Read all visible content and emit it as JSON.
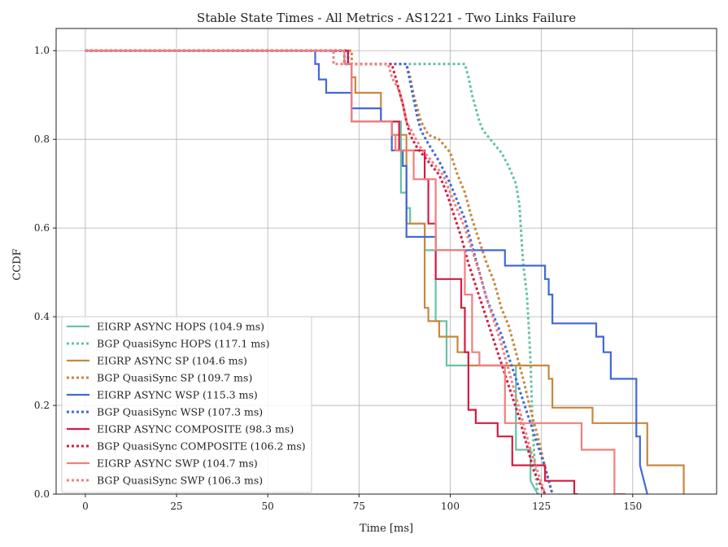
{
  "chart_data": {
    "type": "line",
    "title": "Stable State Times - All Metrics - AS1221 - Two Links Failure",
    "xlabel": "Time [ms]",
    "ylabel": "CCDF",
    "xlim": [
      -8,
      173
    ],
    "ylim": [
      0,
      1.05
    ],
    "xticks": [
      0,
      25,
      50,
      75,
      100,
      125,
      150
    ],
    "yticks": [
      0.0,
      0.2,
      0.4,
      0.6,
      0.8,
      1.0
    ],
    "xtick_labels": [
      "0",
      "25",
      "50",
      "75",
      "100",
      "125",
      "150"
    ],
    "ytick_labels": [
      "0.0",
      "0.2",
      "0.4",
      "0.6",
      "0.8",
      "1.0"
    ],
    "grid": true,
    "legend_position": "lower-left",
    "series": [
      {
        "name": "EIGRP ASYNC HOPS (104.9 ms)",
        "color": "#66c2a5",
        "style": "solid",
        "x": [
          0,
          72,
          72,
          73,
          73,
          86.5,
          86.5,
          88,
          88,
          89,
          89,
          93,
          93,
          96,
          96,
          99,
          99,
          105,
          105,
          118,
          118,
          122,
          122,
          124
        ],
        "y": [
          1.0,
          1.0,
          0.97,
          0.97,
          0.84,
          0.84,
          0.68,
          0.68,
          0.645,
          0.645,
          0.61,
          0.61,
          0.55,
          0.55,
          0.39,
          0.39,
          0.29,
          0.29,
          0.29,
          0.29,
          0.1,
          0.1,
          0.03,
          0.0
        ]
      },
      {
        "name": "BGP QuasiSync HOPS (117.1 ms)",
        "color": "#66c2a5",
        "style": "dotted",
        "x": [
          0,
          72,
          72,
          104,
          105,
          106,
          107,
          108,
          109,
          110,
          112,
          114,
          116,
          117,
          118,
          119,
          119.5,
          120,
          121,
          121.5,
          122,
          122.3,
          122.6,
          123,
          123.5,
          124
        ],
        "y": [
          1.0,
          1.0,
          0.97,
          0.97,
          0.94,
          0.9,
          0.87,
          0.84,
          0.82,
          0.81,
          0.79,
          0.77,
          0.74,
          0.72,
          0.7,
          0.65,
          0.58,
          0.52,
          0.45,
          0.38,
          0.3,
          0.22,
          0.15,
          0.09,
          0.04,
          0.0
        ]
      },
      {
        "name": "EIGRP ASYNC SP (104.6 ms)",
        "color": "#c8873f",
        "style": "solid",
        "x": [
          0,
          72,
          72,
          73,
          73,
          74,
          74,
          81,
          81,
          84,
          84,
          88,
          88,
          93,
          93,
          94,
          94,
          97,
          97,
          102,
          102,
          105,
          105,
          127,
          127,
          128,
          128,
          139,
          139,
          154,
          154,
          164,
          164
        ],
        "y": [
          1.0,
          1.0,
          0.97,
          0.97,
          0.94,
          0.94,
          0.905,
          0.905,
          0.84,
          0.84,
          0.81,
          0.81,
          0.61,
          0.61,
          0.42,
          0.42,
          0.39,
          0.39,
          0.355,
          0.355,
          0.32,
          0.32,
          0.29,
          0.29,
          0.26,
          0.26,
          0.195,
          0.195,
          0.16,
          0.16,
          0.065,
          0.065,
          0.0
        ]
      },
      {
        "name": "BGP QuasiSync SP (109.7 ms)",
        "color": "#c8873f",
        "style": "dotted",
        "x": [
          0,
          73,
          73,
          88,
          89,
          90,
          91,
          92,
          94,
          97,
          100,
          102,
          104,
          106,
          108,
          110,
          112,
          114,
          116,
          118,
          120,
          122,
          124,
          126,
          128
        ],
        "y": [
          1.0,
          1.0,
          0.97,
          0.97,
          0.94,
          0.9,
          0.87,
          0.84,
          0.81,
          0.8,
          0.77,
          0.72,
          0.68,
          0.62,
          0.57,
          0.52,
          0.48,
          0.42,
          0.38,
          0.32,
          0.26,
          0.19,
          0.13,
          0.06,
          0.0
        ]
      },
      {
        "name": "EIGRP ASYNC WSP (115.3 ms)",
        "color": "#4169d8",
        "style": "solid",
        "x": [
          0,
          63,
          63,
          64,
          64,
          66,
          66,
          73,
          73,
          81,
          81,
          84,
          84,
          87,
          87,
          88,
          88,
          96,
          96,
          115,
          115,
          126,
          126,
          127,
          127,
          128,
          128,
          140,
          140,
          142,
          142,
          144,
          144,
          151,
          151,
          152,
          152,
          154
        ],
        "y": [
          1.0,
          1.0,
          0.97,
          0.97,
          0.935,
          0.935,
          0.905,
          0.905,
          0.87,
          0.87,
          0.84,
          0.84,
          0.775,
          0.775,
          0.74,
          0.74,
          0.58,
          0.58,
          0.55,
          0.55,
          0.515,
          0.515,
          0.485,
          0.485,
          0.45,
          0.45,
          0.385,
          0.385,
          0.355,
          0.355,
          0.32,
          0.32,
          0.26,
          0.26,
          0.13,
          0.13,
          0.065,
          0.0
        ]
      },
      {
        "name": "BGP QuasiSync WSP (107.3 ms)",
        "color": "#4169d8",
        "style": "dotted",
        "x": [
          0,
          72,
          72,
          88,
          89,
          90,
          91,
          92,
          94,
          97,
          100,
          102,
          104,
          106,
          108,
          110,
          112,
          114,
          116,
          118,
          120,
          122,
          124,
          126,
          128
        ],
        "y": [
          1.0,
          1.0,
          0.97,
          0.97,
          0.93,
          0.89,
          0.85,
          0.82,
          0.79,
          0.75,
          0.7,
          0.66,
          0.62,
          0.56,
          0.5,
          0.44,
          0.4,
          0.36,
          0.31,
          0.26,
          0.21,
          0.16,
          0.11,
          0.06,
          0.0
        ]
      },
      {
        "name": "EIGRP ASYNC COMPOSITE (98.3 ms)",
        "color": "#d41c44",
        "style": "solid",
        "x": [
          0,
          72,
          72,
          73,
          73,
          86,
          86,
          93,
          93,
          94,
          94,
          96,
          96,
          103,
          103,
          104,
          104,
          105,
          105,
          107,
          107,
          113,
          113,
          117,
          117,
          126,
          126,
          134,
          134,
          135
        ],
        "y": [
          1.0,
          1.0,
          0.97,
          0.97,
          0.84,
          0.84,
          0.775,
          0.775,
          0.71,
          0.71,
          0.61,
          0.61,
          0.485,
          0.485,
          0.42,
          0.42,
          0.32,
          0.32,
          0.19,
          0.19,
          0.16,
          0.16,
          0.13,
          0.13,
          0.065,
          0.065,
          0.03,
          0.03,
          0.0,
          0.0
        ]
      },
      {
        "name": "BGP QuasiSync COMPOSITE (106.2 ms)",
        "color": "#d41c44",
        "style": "dotted",
        "x": [
          0,
          71,
          71,
          84,
          85,
          86,
          87,
          88,
          89,
          91,
          94,
          97,
          99,
          101,
          103,
          105,
          107,
          109,
          111,
          113,
          115,
          117,
          119,
          121,
          123,
          126
        ],
        "y": [
          1.0,
          1.0,
          0.97,
          0.97,
          0.94,
          0.91,
          0.88,
          0.84,
          0.81,
          0.78,
          0.75,
          0.72,
          0.68,
          0.63,
          0.58,
          0.52,
          0.47,
          0.42,
          0.37,
          0.32,
          0.27,
          0.22,
          0.17,
          0.11,
          0.05,
          0.0
        ]
      },
      {
        "name": "EIGRP ASYNC SWP (104.7 ms)",
        "color": "#f07f7f",
        "style": "solid",
        "x": [
          0,
          71,
          71,
          73,
          73,
          75,
          75,
          84,
          84,
          85,
          85,
          90,
          90,
          96,
          96,
          104,
          104,
          106,
          106,
          108,
          108,
          115,
          115,
          136,
          136,
          145,
          145,
          148
        ],
        "y": [
          1.0,
          1.0,
          0.97,
          0.97,
          0.84,
          0.84,
          0.84,
          0.84,
          0.81,
          0.81,
          0.775,
          0.775,
          0.71,
          0.71,
          0.55,
          0.55,
          0.45,
          0.45,
          0.32,
          0.32,
          0.29,
          0.29,
          0.16,
          0.16,
          0.1,
          0.1,
          0.0,
          0.0
        ]
      },
      {
        "name": "BGP QuasiSync SWP (106.3 ms)",
        "color": "#f07f7f",
        "style": "dotted",
        "x": [
          0,
          68,
          68,
          83,
          84,
          86,
          87,
          88,
          90,
          92,
          95,
          98,
          100,
          102,
          104,
          106,
          108,
          110,
          112,
          114,
          116,
          118,
          120,
          122,
          124,
          126
        ],
        "y": [
          1.0,
          1.0,
          0.97,
          0.97,
          0.94,
          0.91,
          0.88,
          0.84,
          0.81,
          0.78,
          0.75,
          0.72,
          0.68,
          0.64,
          0.6,
          0.55,
          0.5,
          0.44,
          0.39,
          0.34,
          0.28,
          0.22,
          0.16,
          0.1,
          0.05,
          0.0
        ]
      }
    ]
  }
}
